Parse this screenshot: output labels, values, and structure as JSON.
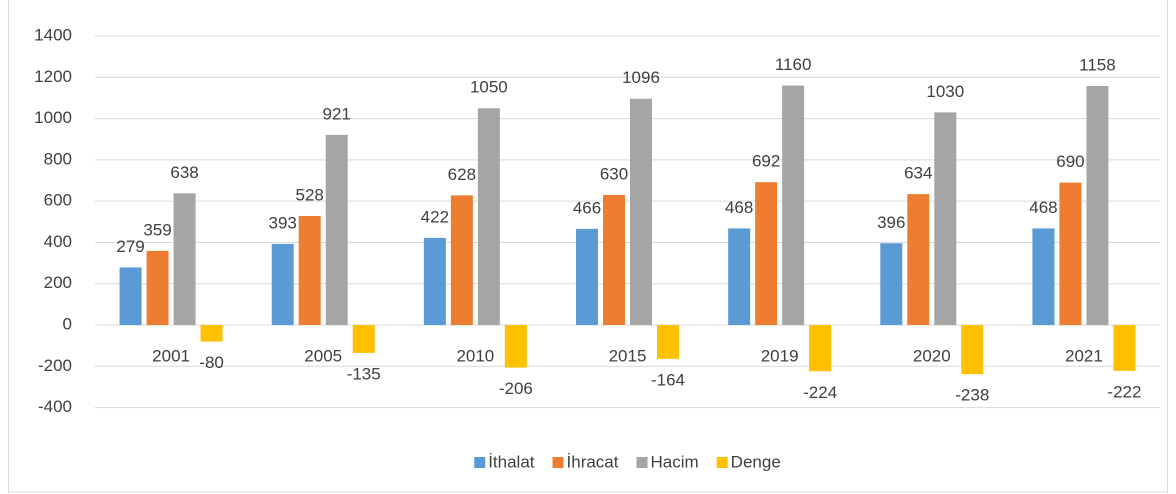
{
  "chart_data": {
    "type": "bar",
    "categories": [
      "2001",
      "2005",
      "2010",
      "2015",
      "2019",
      "2020",
      "2021"
    ],
    "series": [
      {
        "name": "İthalat",
        "color": "#5b9bd5",
        "values": [
          279,
          393,
          422,
          466,
          468,
          396,
          468
        ]
      },
      {
        "name": "İhracat",
        "color": "#ed7d31",
        "values": [
          359,
          528,
          628,
          630,
          692,
          634,
          690
        ]
      },
      {
        "name": "Hacim",
        "color": "#a5a5a5",
        "values": [
          638,
          921,
          1050,
          1096,
          1160,
          1030,
          1158
        ]
      },
      {
        "name": "Denge",
        "color": "#ffc000",
        "values": [
          -80,
          -135,
          -206,
          -164,
          -224,
          -238,
          -222
        ]
      }
    ],
    "ylim": [
      -400,
      1400
    ],
    "yticks": [
      -400,
      -200,
      0,
      200,
      400,
      600,
      800,
      1000,
      1200,
      1400
    ],
    "grid": true,
    "legend": "bottom"
  }
}
